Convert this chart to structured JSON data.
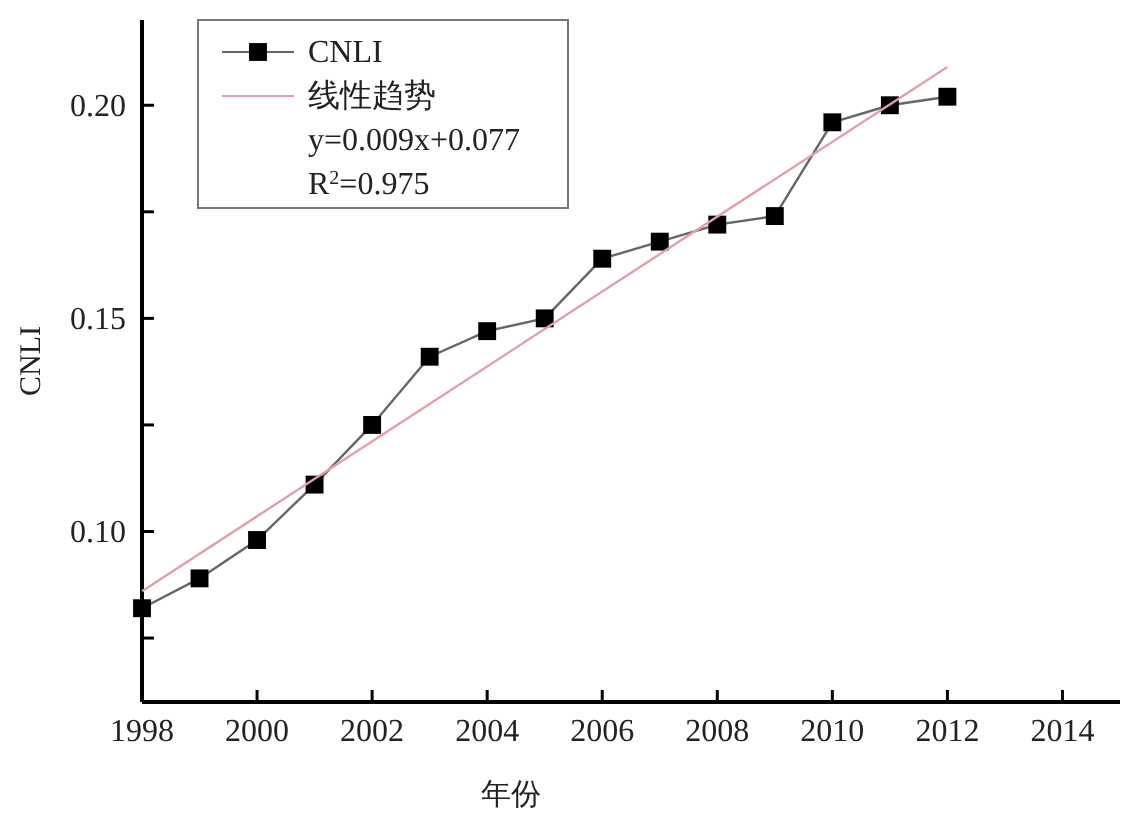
{
  "chart_data": {
    "type": "line",
    "xlabel": "年份",
    "ylabel": "CNLI",
    "x": [
      1998,
      1999,
      2000,
      2001,
      2002,
      2003,
      2004,
      2005,
      2006,
      2007,
      2008,
      2009,
      2010,
      2011,
      2012
    ],
    "series": [
      {
        "name": "CNLI",
        "color": "#000000",
        "marker": "square",
        "values": [
          0.082,
          0.089,
          0.098,
          0.111,
          0.125,
          0.141,
          0.147,
          0.15,
          0.164,
          0.168,
          0.172,
          0.174,
          0.196,
          0.2,
          0.202
        ]
      },
      {
        "name": "线性趋势",
        "color": "#e0a0aa",
        "marker": "none",
        "x": [
          1998,
          2012
        ],
        "values": [
          0.086,
          0.209
        ]
      }
    ],
    "xlim": [
      1998,
      2015
    ],
    "xticks": [
      1998,
      2000,
      2002,
      2004,
      2006,
      2008,
      2010,
      2012,
      2014
    ],
    "ylim": [
      0.06,
      0.22
    ],
    "yticks": [
      {
        "value": 0.075,
        "label": null
      },
      {
        "value": 0.1,
        "label": "0.10"
      },
      {
        "value": 0.125,
        "label": null
      },
      {
        "value": 0.15,
        "label": "0.15"
      },
      {
        "value": 0.175,
        "label": null
      },
      {
        "value": 0.2,
        "label": "0.20"
      }
    ],
    "annotations": [
      "y=0.009x+0.077",
      "R$^{2}$=0.975"
    ],
    "legend": "top left",
    "grid": false
  }
}
